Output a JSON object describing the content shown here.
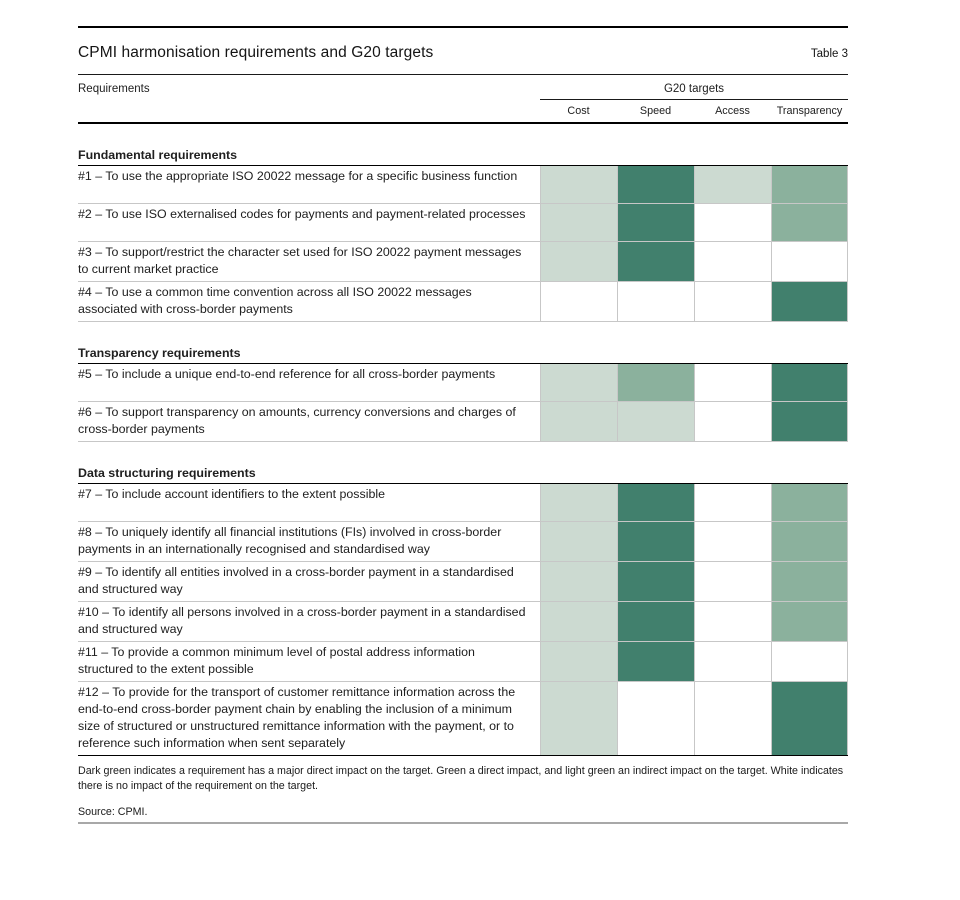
{
  "table": {
    "title": "CPMI harmonisation requirements and G20 targets",
    "table_label": "Table 3",
    "requirements_header": "Requirements",
    "targets_group_header": "G20 targets",
    "target_columns": [
      "Cost",
      "Speed",
      "Access",
      "Transparency"
    ],
    "impact_colors": {
      "major": "#41806d",
      "direct": "#8bb19d",
      "indirect": "#ccdad1",
      "none": "#ffffff"
    },
    "sections": [
      {
        "heading": "Fundamental requirements",
        "rows": [
          {
            "text": "#1 – To use the appropriate ISO 20022 message for a specific business function",
            "impacts": [
              "indirect",
              "major",
              "indirect",
              "direct"
            ]
          },
          {
            "text": "#2 – To use ISO externalised codes for payments and payment-related processes",
            "impacts": [
              "indirect",
              "major",
              "none",
              "direct"
            ]
          },
          {
            "text": "#3 – To support/restrict the character set used for ISO 20022 payment messages to current market practice",
            "impacts": [
              "indirect",
              "major",
              "none",
              "none"
            ]
          },
          {
            "text": "#4 – To use a common time convention across all ISO 20022 messages associated with cross-border payments",
            "impacts": [
              "none",
              "none",
              "none",
              "major"
            ]
          }
        ]
      },
      {
        "heading": "Transparency requirements",
        "rows": [
          {
            "text": "#5 – To include a unique end-to-end reference for all cross-border payments",
            "impacts": [
              "indirect",
              "direct",
              "none",
              "major"
            ]
          },
          {
            "text": "#6 – To support transparency on amounts, currency conversions and charges of cross-border payments",
            "impacts": [
              "indirect",
              "indirect",
              "none",
              "major"
            ]
          }
        ]
      },
      {
        "heading": "Data structuring requirements",
        "rows": [
          {
            "text": "#7 – To include account identifiers to the extent possible",
            "impacts": [
              "indirect",
              "major",
              "none",
              "direct"
            ]
          },
          {
            "text": "#8 – To uniquely identify all financial institutions (FIs) involved in cross-border payments in an internationally recognised and standardised way",
            "impacts": [
              "indirect",
              "major",
              "none",
              "direct"
            ]
          },
          {
            "text": "#9 – To identify all entities involved in a cross-border payment in a standardised and structured way",
            "impacts": [
              "indirect",
              "major",
              "none",
              "direct"
            ]
          },
          {
            "text": "#10 – To identify all persons involved in a cross-border payment in a standardised and structured way",
            "impacts": [
              "indirect",
              "major",
              "none",
              "direct"
            ]
          },
          {
            "text": "#11 – To provide a common minimum level of postal address information structured to the extent possible",
            "impacts": [
              "indirect",
              "major",
              "none",
              "none"
            ]
          },
          {
            "text": "#12 – To provide for the transport of customer remittance information across the end-to-end cross-border payment chain by enabling the inclusion of a minimum size of structured or unstructured remittance information with the payment, or to reference such information when sent separately",
            "impacts": [
              "indirect",
              "none",
              "none",
              "major"
            ]
          }
        ]
      }
    ],
    "footnote": "Dark green indicates a requirement has a major direct impact on the target. Green a direct impact, and light green an indirect impact on the target. White indicates there is no impact of the requirement on the target.",
    "source": "Source: CPMI."
  }
}
